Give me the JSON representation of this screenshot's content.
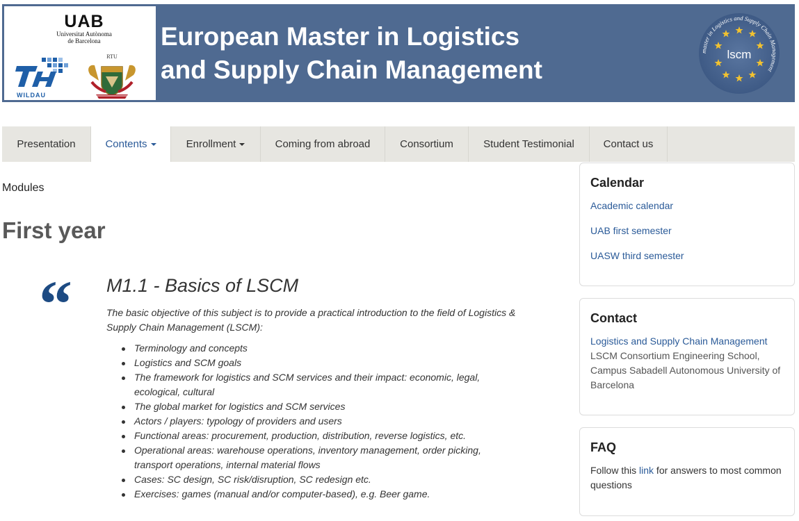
{
  "header": {
    "logo_uab": "UAB",
    "logo_uab_sub1": "Universitat Autònoma",
    "logo_uab_sub2": "de Barcelona",
    "logo_th": "TH",
    "logo_wildau": "WILDAU",
    "logo_rtu": "RTU",
    "title_line1": "European Master in Logistics",
    "title_line2": "and Supply Chain Management",
    "seal_abbr": "lscm",
    "seal_ring_text": "master in Logistics and Supply Chain Management"
  },
  "nav": {
    "items": [
      {
        "label": "Presentation",
        "dropdown": false,
        "active": false
      },
      {
        "label": "Contents",
        "dropdown": true,
        "active": true
      },
      {
        "label": "Enrollment",
        "dropdown": true,
        "active": false
      },
      {
        "label": "Coming from abroad",
        "dropdown": false,
        "active": false
      },
      {
        "label": "Consortium",
        "dropdown": false,
        "active": false
      },
      {
        "label": "Student Testimonial",
        "dropdown": false,
        "active": false
      },
      {
        "label": "Contact us",
        "dropdown": false,
        "active": false
      }
    ]
  },
  "main": {
    "breadcrumb": "Modules",
    "year_title": "First year",
    "module": {
      "title": "M1.1 - Basics of LSCM",
      "intro": "The basic objective of this subject is to provide a practical introduction to the field of Logistics & Supply Chain Management (LSCM):",
      "items": [
        "Terminology and concepts",
        "Logistics and SCM goals",
        "The framework for logistics and SCM services and their impact: economic, legal, ecological, cultural",
        "The global market for logistics and SCM services",
        "Actors / players: typology of providers and users",
        "Functional areas: procurement, production, distribution, reverse logistics, etc.",
        "Operational areas: warehouse operations, inventory management, order picking, transport operations, internal material flows",
        "Cases: SC design, SC risk/disruption, SC redesign etc.",
        "Exercises: games (manual and/or computer-based), e.g. Beer game."
      ]
    }
  },
  "sidebar": {
    "calendar": {
      "title": "Calendar",
      "links": [
        "Academic calendar",
        "UAB first semester",
        "UASW third semester"
      ]
    },
    "contact": {
      "title": "Contact",
      "link": "Logistics and Supply Chain Management",
      "text": "LSCM Consortium Engineering School, Campus Sabadell Autonomous University of Barcelona"
    },
    "faq": {
      "title": "FAQ",
      "text_before": "Follow this ",
      "link": "link",
      "text_after": " for answers to most common questions"
    }
  },
  "colors": {
    "banner": "#4f6a91",
    "nav_bg": "#e7e6e1",
    "link": "#2a5a98",
    "quote": "#1d4b83",
    "seal_stars": "#f2c230"
  }
}
